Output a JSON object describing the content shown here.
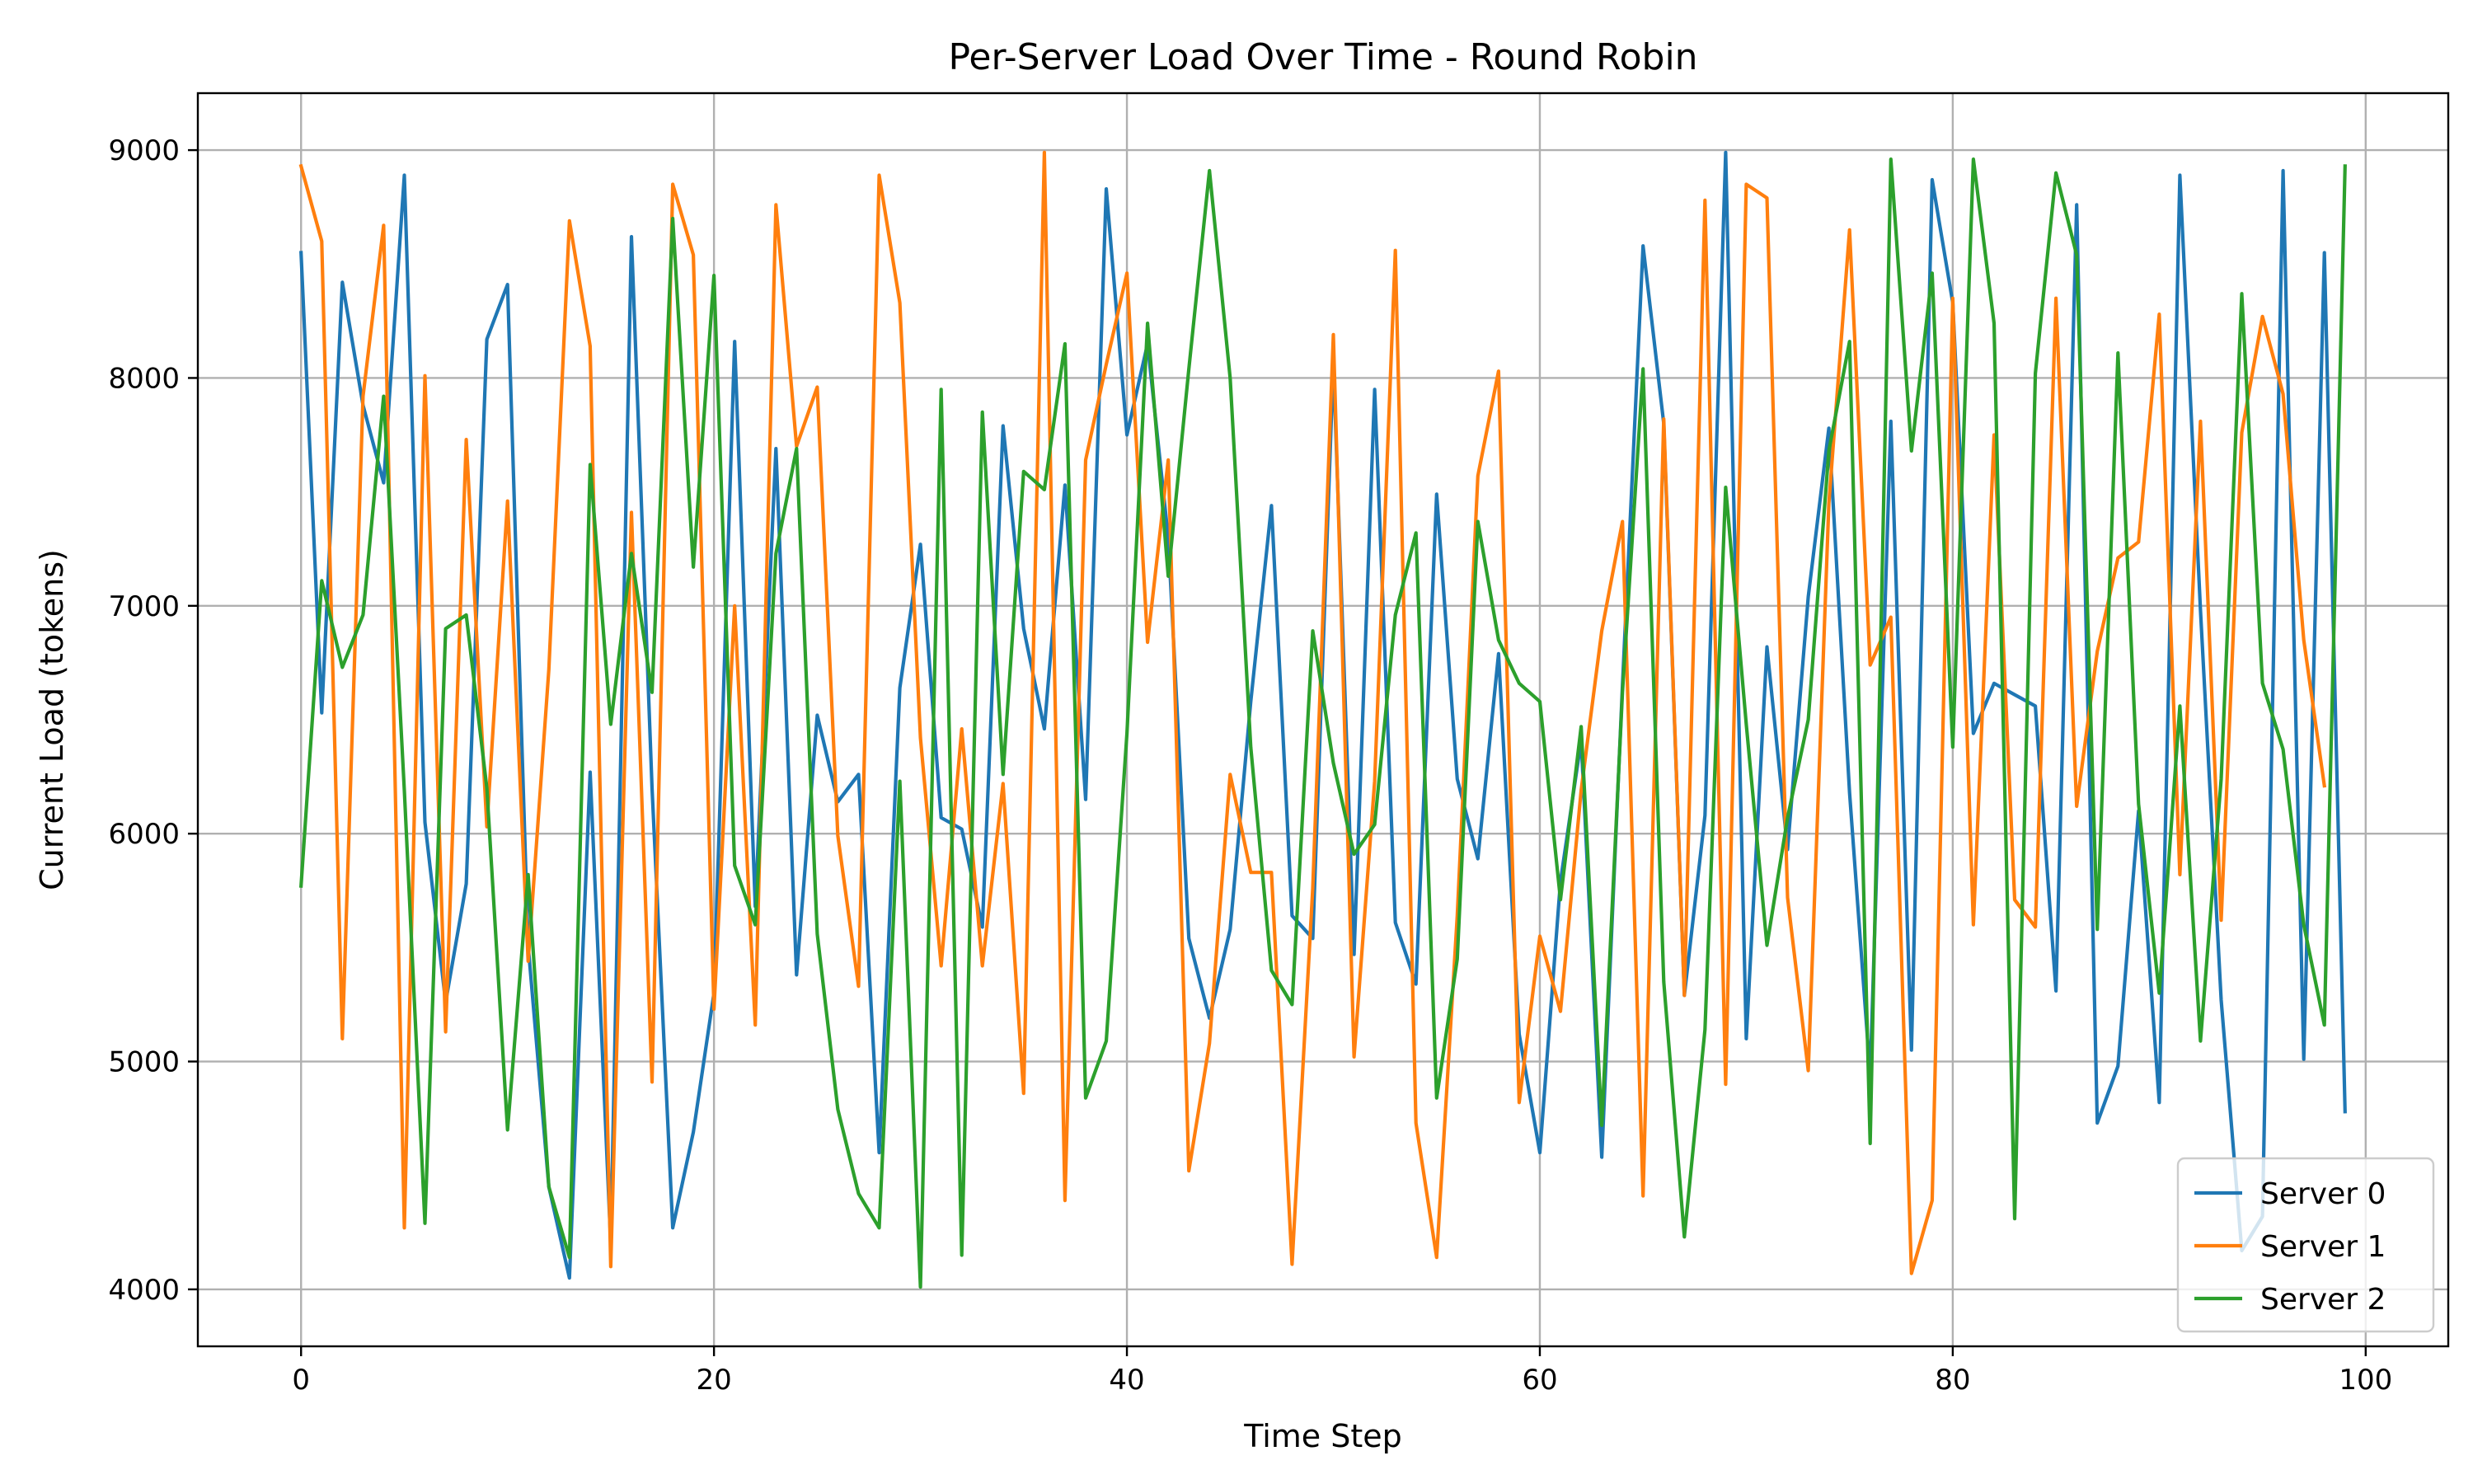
{
  "chart_data": {
    "type": "line",
    "title": "Per-Server Load Over Time - Round Robin",
    "xlabel": "Time Step",
    "ylabel": "Current Load (tokens)",
    "xlim": [
      -5,
      104
    ],
    "ylim": [
      3750,
      9250
    ],
    "xticks": [
      0,
      20,
      40,
      60,
      80,
      100
    ],
    "yticks": [
      4000,
      5000,
      6000,
      7000,
      8000,
      9000
    ],
    "grid": true,
    "legend_position": "lower-right",
    "series": [
      {
        "name": "Server 0",
        "color": "#1f77b4",
        "values": [
          8550,
          6530,
          8420,
          7880,
          7540,
          8890,
          6050,
          5260,
          5780,
          8170,
          8410,
          5510,
          4450,
          4050,
          6270,
          4200,
          8620,
          6200,
          4270,
          4690,
          5300,
          8160,
          5680,
          7690,
          5380,
          6520,
          6140,
          6260,
          4600,
          6640,
          7270,
          6070,
          6020,
          5590,
          7790,
          6900,
          6460,
          7530,
          6150,
          8830,
          7750,
          8150,
          7300,
          5540,
          5190,
          5580,
          6580,
          7440,
          5640,
          5540,
          8070,
          5470,
          7950,
          5610,
          5340,
          7490,
          6240,
          5890,
          6790,
          5120,
          4600,
          5790,
          6410,
          4580,
          6650,
          8580,
          7800,
          5290,
          6080,
          8990,
          5100,
          6820,
          5930,
          7040,
          7780,
          6180,
          4940,
          7810,
          5050,
          8870,
          8330,
          6440,
          6660,
          6610,
          6560,
          5310,
          8760,
          4730,
          4980,
          6100,
          4820,
          8890,
          6980,
          5270,
          4170,
          4320,
          8910,
          5010,
          8550,
          4780
        ]
      },
      {
        "name": "Server 1",
        "color": "#ff7f0e",
        "values": [
          8930,
          8600,
          5100,
          7920,
          8670,
          4270,
          8010,
          5130,
          7730,
          6030,
          7460,
          5440,
          6720,
          8690,
          8140,
          4100,
          7410,
          4910,
          8850,
          8540,
          5230,
          7000,
          5160,
          8760,
          7700,
          7960,
          5990,
          5330,
          8890,
          8330,
          6420,
          5420,
          6460,
          5420,
          6220,
          4860,
          8990,
          4390,
          7640,
          8060,
          8460,
          6840,
          7640,
          4520,
          5080,
          6260,
          5830,
          5830,
          4110,
          5760,
          8190,
          5020,
          6230,
          8560,
          4730,
          4140,
          5640,
          7570,
          8030,
          4820,
          5550,
          5220,
          6190,
          6890,
          7370,
          4410,
          7820,
          5290,
          8780,
          4900,
          8850,
          8790,
          5720,
          4960,
          7450,
          8650,
          6740,
          6950,
          4070,
          4390,
          8350,
          5600,
          7750,
          5710,
          5590,
          8350,
          6120,
          6800,
          7210,
          7280,
          8280,
          5820,
          7810,
          5620,
          7760,
          8270,
          7930,
          6850,
          6210
        ]
      },
      {
        "name": "Server 2",
        "color": "#2ca02c",
        "values": [
          5770,
          7110,
          6730,
          6960,
          7920,
          6190,
          4290,
          6900,
          6960,
          6200,
          4700,
          5820,
          4450,
          4140,
          7620,
          6480,
          7230,
          6620,
          8700,
          7170,
          8450,
          5860,
          5600,
          7230,
          7690,
          5560,
          4790,
          4420,
          4270,
          6230,
          4010,
          7950,
          4150,
          7850,
          6260,
          7590,
          7510,
          8150,
          4840,
          5090,
          6440,
          8240,
          7130,
          8040,
          8910,
          8000,
          6380,
          5400,
          5250,
          6890,
          6310,
          5910,
          6040,
          6960,
          7320,
          4840,
          5450,
          7370,
          6850,
          6660,
          6580,
          5710,
          6470,
          4720,
          6620,
          8040,
          5350,
          4230,
          5140,
          7520,
          6480,
          5510,
          6070,
          6500,
          7680,
          8160,
          4640,
          8960,
          7680,
          8460,
          6380,
          8960,
          8240,
          4310,
          8020,
          8900,
          8540,
          5580,
          8110,
          6130,
          5300,
          6560,
          5090,
          6240,
          8370,
          6660,
          6370,
          5600,
          5160,
          8930
        ]
      }
    ]
  }
}
